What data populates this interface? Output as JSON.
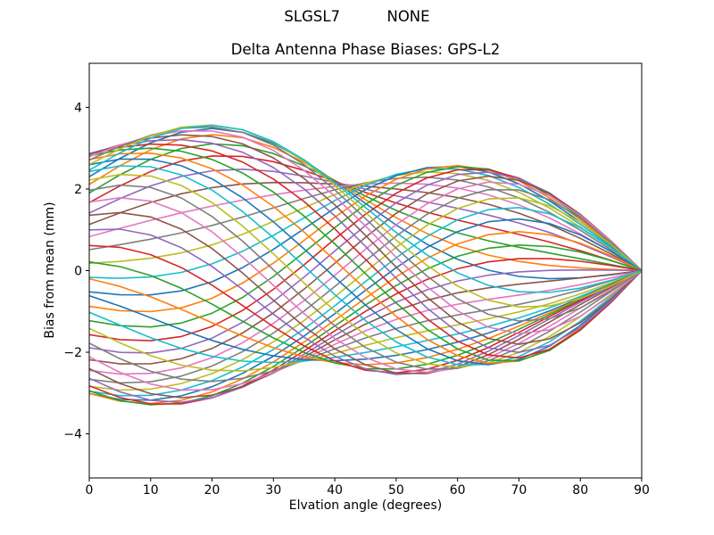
{
  "chart_data": {
    "type": "line",
    "suptitle": "SLGSL7          NONE",
    "title": "Delta Antenna Phase Biases: GPS-L2",
    "xlabel": "Elvation angle (degrees)",
    "ylabel": "Bias from mean (mm)",
    "xlim": [
      0,
      90
    ],
    "ylim": [
      -5.08,
      5.08
    ],
    "grid": false,
    "legend": "none",
    "background": "#ffffff",
    "text_color": "#000000",
    "frame_color": "#000000",
    "xticks": [
      {
        "v": 0,
        "label": "0"
      },
      {
        "v": 10,
        "label": "10"
      },
      {
        "v": 20,
        "label": "20"
      },
      {
        "v": 30,
        "label": "30"
      },
      {
        "v": 40,
        "label": "40"
      },
      {
        "v": 50,
        "label": "50"
      },
      {
        "v": 60,
        "label": "60"
      },
      {
        "v": 70,
        "label": "70"
      },
      {
        "v": 80,
        "label": "80"
      },
      {
        "v": 90,
        "label": "90"
      }
    ],
    "yticks": [
      {
        "v": -4,
        "label": "−4"
      },
      {
        "v": -2,
        "label": "−2"
      },
      {
        "v": 0,
        "label": "0"
      },
      {
        "v": 2,
        "label": "2"
      },
      {
        "v": 4,
        "label": "4"
      }
    ],
    "palette": [
      "#1f77b4",
      "#ff7f0e",
      "#2ca02c",
      "#d62728",
      "#9467bd",
      "#8c564b",
      "#e377c2",
      "#7f7f7f",
      "#bcbd22",
      "#17becf"
    ],
    "line_width": 1.6,
    "n_series": 50,
    "x_sample_step_deg": 5,
    "converge_point": {
      "x": 90,
      "y": 0
    },
    "envelope": {
      "at_x0": [
        -3.5,
        3.0
      ],
      "at_x25": [
        -2.4,
        2.9
      ],
      "at_x45": [
        -1.4,
        1.4
      ],
      "at_x60": [
        -2.2,
        1.9
      ],
      "at_x80": [
        -1.3,
        1.3
      ]
    },
    "series_model": {
      "description_basis": "zenith-harmonics",
      "modes": [
        {
          "k": 1,
          "u": 2.1,
          "v": -0.4,
          "w": 0.2,
          "pm": 1
        },
        {
          "k": 2,
          "u": 0.35,
          "v": 0.8,
          "w": -0.15,
          "pm": 1
        },
        {
          "k": 3,
          "u": -0.25,
          "v": 1.35,
          "w": 0.1,
          "pm": 1
        },
        {
          "k": 4,
          "u": -0.8,
          "v": 0.7,
          "w": -0.15,
          "pm": 1
        },
        {
          "k": 5,
          "u": -0.2,
          "v": 0.18,
          "w": 0.05,
          "pm": 2
        },
        {
          "k": 6,
          "u": 0.18,
          "v": 0.15,
          "w": 0.0,
          "pm": 3
        }
      ],
      "phases_deg": [
        0,
        7.2,
        14.4,
        21.6,
        28.8,
        36,
        43.2,
        50.4,
        57.6,
        64.8,
        72,
        79.2,
        86.4,
        93.6,
        100.8,
        108,
        115.2,
        122.4,
        129.6,
        136.8,
        144,
        151.2,
        158.4,
        165.6,
        172.8,
        180,
        187.2,
        194.4,
        201.6,
        208.8,
        216,
        223.2,
        230.4,
        237.6,
        244.8,
        252,
        259.2,
        266.4,
        273.6,
        280.8,
        288,
        295.2,
        302.4,
        309.6,
        316.8,
        324,
        331.2,
        338.4,
        345.6,
        352.8
      ]
    }
  }
}
